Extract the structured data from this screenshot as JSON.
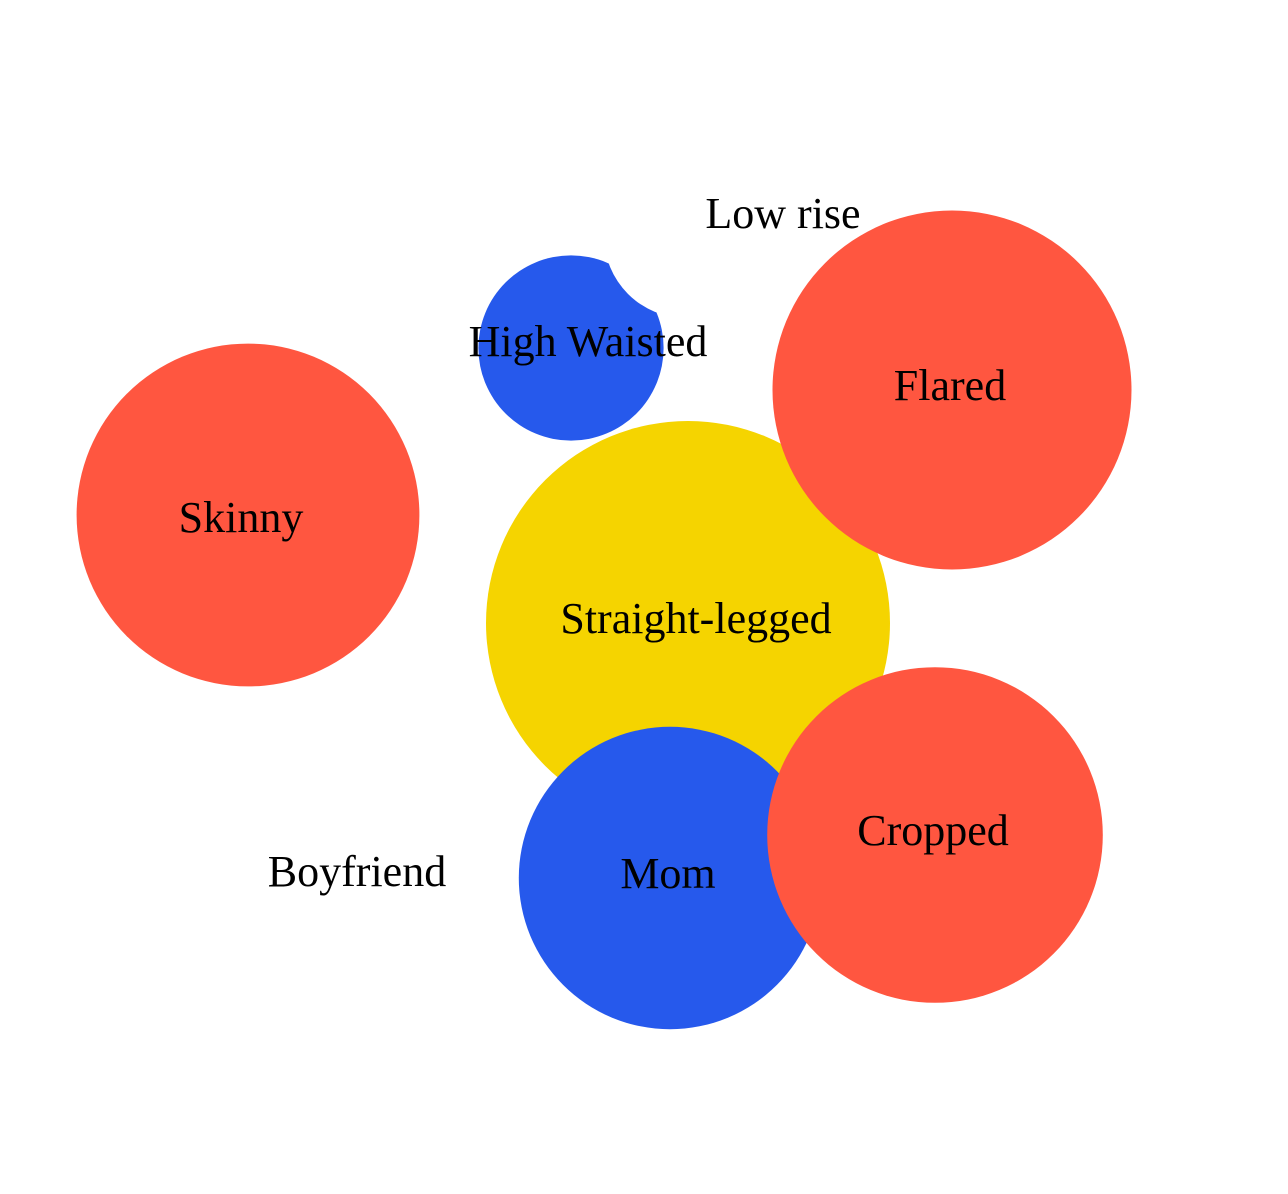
{
  "chart_data": {
    "type": "bubble",
    "title": "",
    "xlabel": "",
    "ylabel": "",
    "colors": {
      "red": "#ff5640",
      "yellow": "#f5d400",
      "blue": "#2659ec",
      "background": "#ffffff",
      "text": "#000000"
    },
    "bubbles": [
      {
        "label": "Straight-legged",
        "value": 100,
        "color": "#f5d400"
      },
      {
        "label": "Mom",
        "value": 56,
        "color": "#2659ec"
      },
      {
        "label": "Cropped",
        "value": 69,
        "color": "#ff5640"
      },
      {
        "label": "Flared",
        "value": 79,
        "color": "#ff5640"
      },
      {
        "label": "Skinny",
        "value": 72,
        "color": "#ff5640"
      },
      {
        "label": "High Waisted",
        "value": 21,
        "color": "#2659ec"
      },
      {
        "label": "Low rise",
        "value": 0,
        "color": "#ff5640"
      },
      {
        "label": "Boyfriend",
        "value": 0,
        "color": "#2659ec"
      }
    ]
  }
}
